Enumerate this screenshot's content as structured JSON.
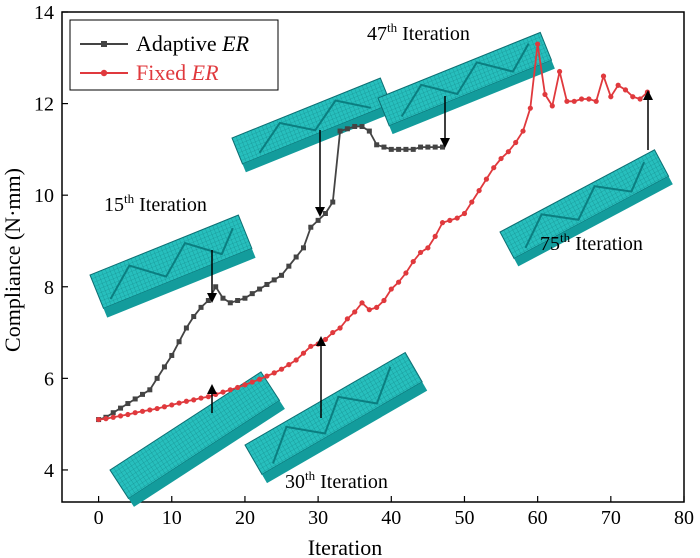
{
  "chart_data": {
    "type": "line",
    "xlabel": "Iteration",
    "ylabel": "Compliance (N·mm)",
    "xlim": [
      -5,
      80
    ],
    "ylim": [
      3.3,
      14
    ],
    "xticks": [
      0,
      10,
      20,
      30,
      40,
      50,
      60,
      70,
      80
    ],
    "yticks": [
      4,
      6,
      8,
      10,
      12,
      14
    ],
    "grid": false,
    "legend_position": "top-left",
    "series": [
      {
        "name_prefix": "Adaptive ",
        "name_italic": "ER",
        "color": "#444444",
        "marker": "square",
        "x": [
          0,
          1,
          2,
          3,
          4,
          5,
          6,
          7,
          8,
          9,
          10,
          11,
          12,
          13,
          14,
          15,
          16,
          17,
          18,
          19,
          20,
          21,
          22,
          23,
          24,
          25,
          26,
          27,
          28,
          29,
          30,
          31,
          32,
          33,
          34,
          35,
          36,
          37,
          38,
          39,
          40,
          41,
          42,
          43,
          44,
          45,
          46,
          47
        ],
        "y": [
          5.1,
          5.15,
          5.25,
          5.35,
          5.45,
          5.55,
          5.65,
          5.75,
          6.0,
          6.25,
          6.5,
          6.8,
          7.1,
          7.35,
          7.55,
          7.7,
          8.0,
          7.75,
          7.65,
          7.7,
          7.75,
          7.85,
          7.95,
          8.05,
          8.15,
          8.25,
          8.45,
          8.65,
          8.85,
          9.3,
          9.45,
          9.6,
          9.85,
          11.4,
          11.45,
          11.5,
          11.5,
          11.4,
          11.1,
          11.05,
          11.0,
          11.0,
          11.0,
          11.0,
          11.05,
          11.05,
          11.05,
          11.05
        ]
      },
      {
        "name_prefix": "Fixed ",
        "name_italic": "ER",
        "color": "#e0393d",
        "marker": "circle",
        "x": [
          0,
          1,
          2,
          3,
          4,
          5,
          6,
          7,
          8,
          9,
          10,
          11,
          12,
          13,
          14,
          15,
          16,
          17,
          18,
          19,
          20,
          21,
          22,
          23,
          24,
          25,
          26,
          27,
          28,
          29,
          30,
          31,
          32,
          33,
          34,
          35,
          36,
          37,
          38,
          39,
          40,
          41,
          42,
          43,
          44,
          45,
          46,
          47,
          48,
          49,
          50,
          51,
          52,
          53,
          54,
          55,
          56,
          57,
          58,
          59,
          60,
          61,
          62,
          63,
          64,
          65,
          66,
          67,
          68,
          69,
          70,
          71,
          72,
          73,
          74,
          75
        ],
        "y": [
          5.1,
          5.12,
          5.15,
          5.18,
          5.21,
          5.25,
          5.28,
          5.31,
          5.34,
          5.38,
          5.42,
          5.46,
          5.5,
          5.53,
          5.57,
          5.6,
          5.65,
          5.7,
          5.75,
          5.8,
          5.86,
          5.92,
          5.98,
          6.05,
          6.12,
          6.2,
          6.3,
          6.4,
          6.55,
          6.7,
          6.75,
          6.85,
          7.0,
          7.1,
          7.3,
          7.45,
          7.65,
          7.5,
          7.55,
          7.7,
          7.95,
          8.1,
          8.3,
          8.55,
          8.75,
          8.85,
          9.1,
          9.4,
          9.45,
          9.5,
          9.6,
          9.85,
          10.1,
          10.35,
          10.6,
          10.8,
          10.95,
          11.15,
          11.4,
          11.9,
          13.3,
          12.2,
          11.95,
          12.7,
          12.05,
          12.05,
          12.1,
          12.1,
          12.05,
          12.6,
          12.15,
          12.4,
          12.3,
          12.15,
          12.1,
          12.25
        ]
      }
    ],
    "annotations": [
      {
        "num": "15",
        "sup": "th",
        "text": " Iteration"
      },
      {
        "num": "30",
        "sup": "th",
        "text": " Iteration"
      },
      {
        "num": "47",
        "sup": "th",
        "text": " Iteration"
      },
      {
        "num": "75",
        "sup": "th",
        "text": " Iteration"
      }
    ]
  },
  "colors": {
    "structure": "#1fb4b4",
    "adaptive": "#444444",
    "fixed": "#e0393d"
  }
}
